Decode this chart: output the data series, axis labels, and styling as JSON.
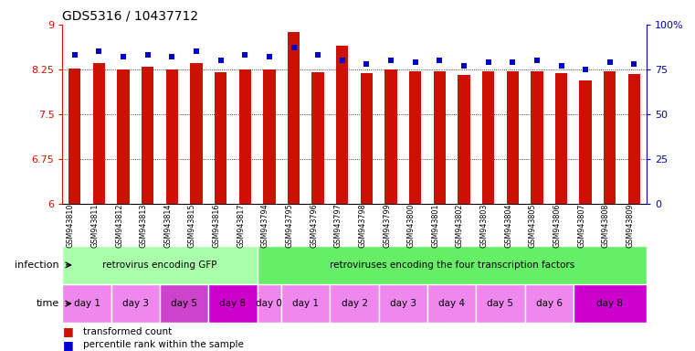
{
  "title": "GDS5316 / 10437712",
  "samples": [
    "GSM943810",
    "GSM943811",
    "GSM943812",
    "GSM943813",
    "GSM943814",
    "GSM943815",
    "GSM943816",
    "GSM943817",
    "GSM943794",
    "GSM943795",
    "GSM943796",
    "GSM943797",
    "GSM943798",
    "GSM943799",
    "GSM943800",
    "GSM943801",
    "GSM943802",
    "GSM943803",
    "GSM943804",
    "GSM943805",
    "GSM943806",
    "GSM943807",
    "GSM943808",
    "GSM943809"
  ],
  "transformed_count": [
    8.27,
    8.35,
    8.25,
    8.3,
    8.25,
    8.35,
    8.2,
    8.25,
    8.25,
    8.88,
    8.2,
    8.65,
    8.18,
    8.24,
    8.22,
    8.21,
    8.16,
    8.22,
    8.21,
    8.21,
    8.18,
    8.06,
    8.21,
    8.17
  ],
  "percentile_rank": [
    83,
    85,
    82,
    83,
    82,
    85,
    80,
    83,
    82,
    87,
    83,
    80,
    78,
    80,
    79,
    80,
    77,
    79,
    79,
    80,
    77,
    75,
    79,
    78
  ],
  "ylim_left": [
    6,
    9
  ],
  "ylim_right": [
    0,
    100
  ],
  "yticks_left": [
    6,
    6.75,
    7.5,
    8.25,
    9
  ],
  "yticks_right": [
    0,
    25,
    50,
    75,
    100
  ],
  "bar_color": "#cc1100",
  "dot_color": "#0000cc",
  "infection_groups": [
    {
      "label": "retrovirus encoding GFP",
      "start": 0,
      "end": 8,
      "color": "#aaffaa"
    },
    {
      "label": "retroviruses encoding the four transcription factors",
      "start": 8,
      "end": 24,
      "color": "#66ee66"
    }
  ],
  "time_groups": [
    {
      "label": "day 1",
      "start": 0,
      "end": 2,
      "color": "#ee88ee"
    },
    {
      "label": "day 3",
      "start": 2,
      "end": 4,
      "color": "#ee88ee"
    },
    {
      "label": "day 5",
      "start": 4,
      "end": 6,
      "color": "#cc44cc"
    },
    {
      "label": "day 8",
      "start": 6,
      "end": 8,
      "color": "#cc00cc"
    },
    {
      "label": "day 0",
      "start": 8,
      "end": 9,
      "color": "#ee88ee"
    },
    {
      "label": "day 1",
      "start": 9,
      "end": 11,
      "color": "#ee88ee"
    },
    {
      "label": "day 2",
      "start": 11,
      "end": 13,
      "color": "#ee88ee"
    },
    {
      "label": "day 3",
      "start": 13,
      "end": 15,
      "color": "#ee88ee"
    },
    {
      "label": "day 4",
      "start": 15,
      "end": 17,
      "color": "#ee88ee"
    },
    {
      "label": "day 5",
      "start": 17,
      "end": 19,
      "color": "#ee88ee"
    },
    {
      "label": "day 6",
      "start": 19,
      "end": 21,
      "color": "#ee88ee"
    },
    {
      "label": "day 8",
      "start": 21,
      "end": 24,
      "color": "#cc00cc"
    }
  ],
  "legend_items": [
    {
      "label": "transformed count",
      "color": "#cc1100"
    },
    {
      "label": "percentile rank within the sample",
      "color": "#0000cc"
    }
  ],
  "left_axis_color": "#cc1100",
  "right_axis_color": "#0000bb",
  "background_color": "#ffffff"
}
